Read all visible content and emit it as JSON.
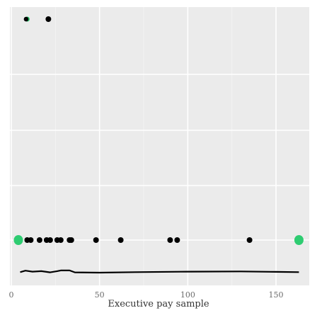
{
  "chart_data": {
    "type": "scatter",
    "title": "",
    "xlabel": "Executive pay sample",
    "ylabel": "",
    "xlim": [
      -5,
      167
    ],
    "x_ticks": [
      0,
      50,
      100,
      150
    ],
    "x_tick_labels": [
      "0",
      "50",
      "100",
      "150"
    ],
    "grid": true,
    "legend": "none",
    "series": [
      {
        "role": "top-row",
        "points": [
          {
            "x": 9,
            "highlight": true
          },
          {
            "x": 21,
            "highlight": false
          }
        ]
      },
      {
        "role": "middle-row",
        "points": [
          {
            "x": 4,
            "highlight": true
          },
          {
            "x": 9,
            "highlight": false
          },
          {
            "x": 11,
            "highlight": false
          },
          {
            "x": 16,
            "highlight": false
          },
          {
            "x": 20,
            "highlight": false
          },
          {
            "x": 22,
            "highlight": false
          },
          {
            "x": 26,
            "highlight": false
          },
          {
            "x": 28,
            "highlight": false
          },
          {
            "x": 33,
            "highlight": false
          },
          {
            "x": 34,
            "highlight": false
          },
          {
            "x": 48,
            "highlight": false
          },
          {
            "x": 62,
            "highlight": false
          },
          {
            "x": 90,
            "highlight": false
          },
          {
            "x": 94,
            "highlight": false
          },
          {
            "x": 135,
            "highlight": false
          },
          {
            "x": 163,
            "highlight": true
          }
        ]
      }
    ],
    "trend_line": [
      [
        5,
        0.2
      ],
      [
        8,
        0.8
      ],
      [
        12,
        0.4
      ],
      [
        17,
        0.6
      ],
      [
        22,
        0.1
      ],
      [
        26,
        0.6
      ],
      [
        28,
        0.9
      ],
      [
        33,
        0.9
      ],
      [
        36,
        0.1
      ],
      [
        50,
        0.0
      ],
      [
        70,
        0.2
      ],
      [
        100,
        0.4
      ],
      [
        130,
        0.5
      ],
      [
        150,
        0.3
      ],
      [
        163,
        0.2
      ]
    ],
    "colors": {
      "panel": "#ebebeb",
      "grid_major": "#ffffff",
      "grid_minor": "#f3f3f3",
      "point": "#000000",
      "highlight": "#2ecc71",
      "line": "#000000"
    }
  }
}
